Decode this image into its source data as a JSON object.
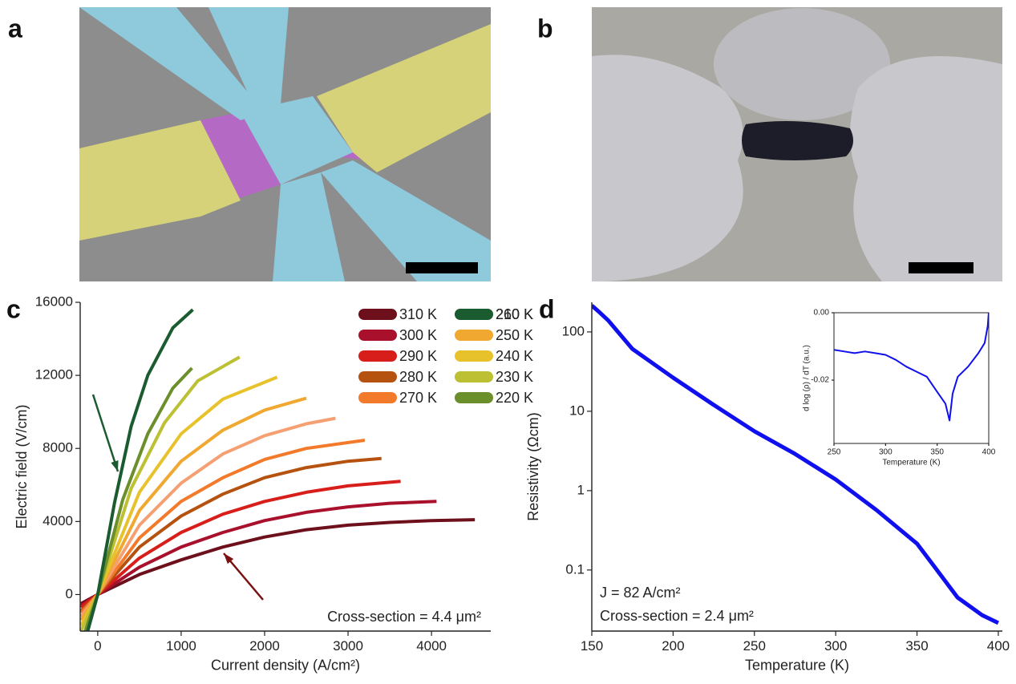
{
  "panels": [
    "a",
    "b",
    "c",
    "d"
  ],
  "chart_data": [
    {
      "type": "line",
      "xlabel": "Current density (A/cm²)",
      "ylabel": "Electric field (V/cm)",
      "xlim": [
        -210,
        4710
      ],
      "ylim": [
        -2000,
        16000
      ],
      "xticks": [
        0,
        1000,
        2000,
        3000,
        4000
      ],
      "yticks": [
        0,
        4000,
        8000,
        12000,
        16000
      ],
      "legend": "upper right",
      "annotation": "Cross-section = 4.4 μm²",
      "series": [
        {
          "name": "310 K",
          "color": "#6e0f1c",
          "x": [
            -200,
            0,
            500,
            1000,
            1500,
            2000,
            2500,
            3000,
            3500,
            4000,
            4520
          ],
          "values": [
            -500,
            0,
            1100,
            1900,
            2600,
            3150,
            3550,
            3800,
            3950,
            4050,
            4100
          ]
        },
        {
          "name": "300 K",
          "color": "#a8102c",
          "x": [
            -200,
            0,
            500,
            1000,
            1500,
            2000,
            2500,
            3000,
            3500,
            4060
          ],
          "values": [
            -600,
            0,
            1500,
            2600,
            3400,
            4050,
            4500,
            4800,
            5000,
            5100
          ]
        },
        {
          "name": "290 K",
          "color": "#d81e1a",
          "x": [
            -200,
            0,
            500,
            1000,
            1500,
            2000,
            2500,
            3000,
            3630
          ],
          "values": [
            -700,
            0,
            2000,
            3400,
            4400,
            5100,
            5600,
            5950,
            6200
          ]
        },
        {
          "name": "280 K",
          "color": "#b5520f",
          "x": [
            -200,
            0,
            500,
            1000,
            1500,
            2000,
            2500,
            3000,
            3400
          ],
          "values": [
            -900,
            0,
            2600,
            4300,
            5500,
            6400,
            6950,
            7300,
            7450
          ]
        },
        {
          "name": "270 K",
          "color": "#f27a2a",
          "x": [
            -200,
            0,
            500,
            1000,
            1500,
            2000,
            2500,
            3200
          ],
          "values": [
            -1000,
            0,
            3100,
            5100,
            6400,
            7400,
            8000,
            8450
          ]
        },
        {
          "name": "260 K",
          "color": "#f5a072",
          "x": [
            -200,
            0,
            500,
            1000,
            1500,
            2000,
            2500,
            2850
          ],
          "values": [
            -1200,
            0,
            3800,
            6100,
            7700,
            8700,
            9350,
            9650
          ]
        },
        {
          "name": "250 K",
          "color": "#f0a830",
          "x": [
            -200,
            0,
            500,
            1000,
            1500,
            2000,
            2500
          ],
          "values": [
            -1400,
            0,
            4600,
            7300,
            9000,
            10100,
            10750
          ]
        },
        {
          "name": "240 K",
          "color": "#e8c22a",
          "x": [
            -200,
            0,
            500,
            1000,
            1500,
            2150
          ],
          "values": [
            -1700,
            0,
            5600,
            8800,
            10700,
            11900
          ]
        },
        {
          "name": "230 K",
          "color": "#bcc032",
          "x": [
            -200,
            0,
            400,
            800,
            1200,
            1700
          ],
          "values": [
            -2000,
            0,
            5800,
            9400,
            11700,
            13000
          ]
        },
        {
          "name": "220 K",
          "color": "#6b8f2a",
          "x": [
            -150,
            0,
            300,
            600,
            900,
            1130
          ],
          "values": [
            -2000,
            0,
            5200,
            8800,
            11300,
            12400
          ]
        },
        {
          "name": "210 K",
          "color": "#1a5c30",
          "x": [
            -120,
            0,
            200,
            400,
            600,
            900,
            1140
          ],
          "values": [
            -2000,
            0,
            5000,
            9200,
            12000,
            14600,
            15600
          ]
        }
      ]
    },
    {
      "type": "line",
      "xlabel": "Temperature (K)",
      "ylabel": "Resistivity (Ωcm)",
      "xlim": [
        150,
        402.5
      ],
      "ylim": [
        0.017,
        236
      ],
      "log_y": true,
      "xticks": [
        150,
        200,
        250,
        300,
        350,
        400
      ],
      "yticks": [
        0.1,
        1,
        10,
        100
      ],
      "annotations": [
        "J = 82 A/cm²",
        "Cross-section = 2.4 μm²"
      ],
      "series": [
        {
          "color": "#1010ee",
          "x": [
            150,
            155,
            160,
            175,
            200,
            225,
            250,
            275,
            300,
            325,
            350,
            360,
            375,
            390,
            400
          ],
          "values": [
            215,
            175,
            140,
            61,
            26.5,
            12,
            5.6,
            2.9,
            1.38,
            0.57,
            0.215,
            0.115,
            0.045,
            0.027,
            0.0215
          ]
        }
      ]
    },
    {
      "type": "line",
      "xlabel": "Temperature (K)",
      "ylabel": "d log (ρ) / dT (a.u.)",
      "xlim": [
        250,
        400
      ],
      "ylim": [
        -0.0388,
        0
      ],
      "xticks": [
        250,
        300,
        350,
        400
      ],
      "yticks": [
        {
          "value": 0,
          "label": "0.00"
        },
        -0.02
      ],
      "series": [
        {
          "color": "#1010ee",
          "x": [
            250,
            260,
            270,
            280,
            290,
            300,
            310,
            320,
            330,
            340,
            350,
            358,
            362,
            365,
            370,
            380,
            390,
            396,
            399,
            400
          ],
          "values": [
            -0.011,
            -0.0115,
            -0.012,
            -0.0115,
            -0.012,
            -0.0125,
            -0.014,
            -0.016,
            -0.0175,
            -0.019,
            -0.0235,
            -0.027,
            -0.032,
            -0.024,
            -0.019,
            -0.016,
            -0.012,
            -0.009,
            -0.004,
            0
          ]
        }
      ]
    }
  ]
}
